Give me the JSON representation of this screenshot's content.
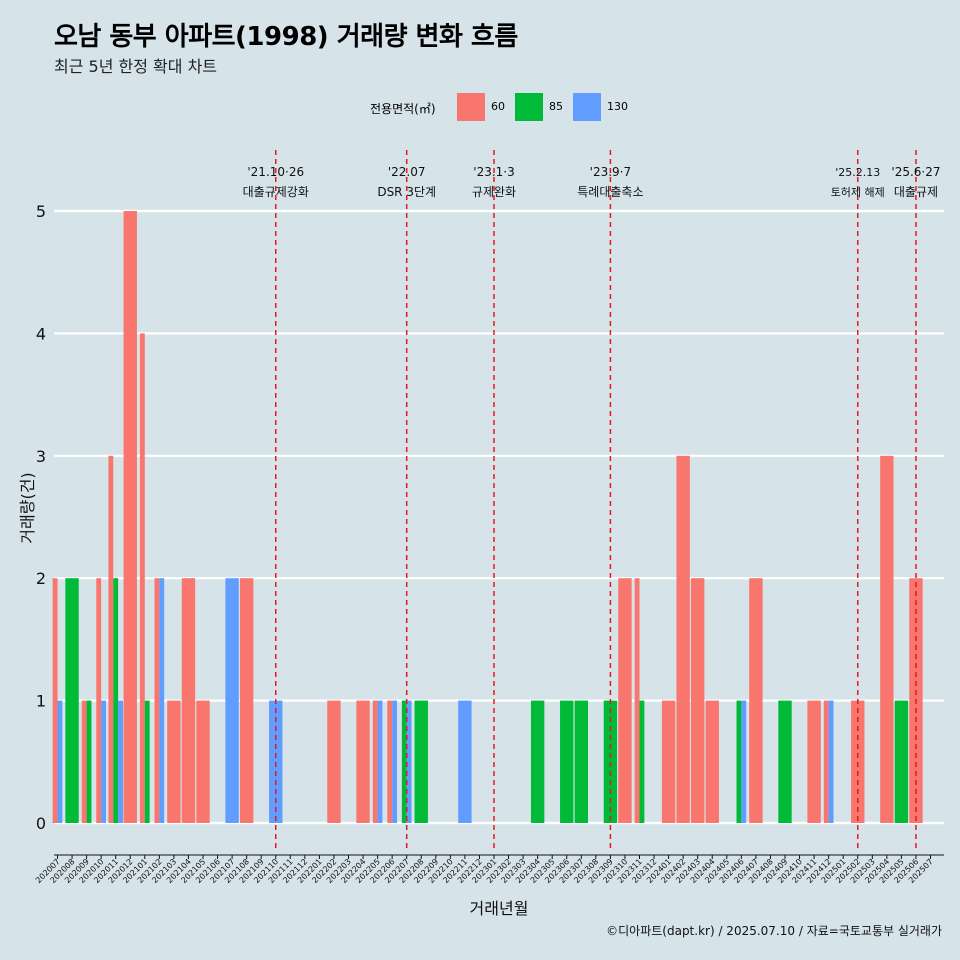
{
  "title": "오남 동부 아파트(1998) 거래량 변화 흐름",
  "subtitle": "최근 5년 한정 확대 차트",
  "caption": "©디아파트(dapt.kr) / 2025.07.10 / 자료=국토교통부 실거래가",
  "legend": {
    "title": "전용면적(㎡)",
    "items": [
      {
        "label": "60",
        "color": "#f8766d"
      },
      {
        "label": "85",
        "color": "#00ba38"
      },
      {
        "label": "130",
        "color": "#619cff"
      }
    ]
  },
  "chart_data": {
    "type": "bar",
    "xlabel": "거래년월",
    "ylabel": "거래량(건)",
    "ylim": [
      0,
      5
    ],
    "yticks": [
      0,
      1,
      2,
      3,
      4,
      5
    ],
    "categories": [
      "202007",
      "202008",
      "202009",
      "202010",
      "202011",
      "202012",
      "202101",
      "202102",
      "202103",
      "202104",
      "202105",
      "202106",
      "202107",
      "202108",
      "202109",
      "202110",
      "202111",
      "202112",
      "202201",
      "202202",
      "202203",
      "202204",
      "202205",
      "202206",
      "202207",
      "202208",
      "202209",
      "202210",
      "202211",
      "202212",
      "202301",
      "202302",
      "202303",
      "202304",
      "202305",
      "202306",
      "202307",
      "202308",
      "202309",
      "202310",
      "202311",
      "202312",
      "202401",
      "202402",
      "202403",
      "202404",
      "202405",
      "202406",
      "202407",
      "202408",
      "202409",
      "202410",
      "202411",
      "202412",
      "202501",
      "202502",
      "202503",
      "202504",
      "202505",
      "202506",
      "202507"
    ],
    "series": [
      {
        "name": "60",
        "values": [
          2,
          0,
          1,
          2,
          3,
          5,
          4,
          2,
          1,
          2,
          1,
          0,
          0,
          2,
          0,
          0,
          0,
          0,
          0,
          1,
          0,
          1,
          1,
          1,
          0,
          0,
          0,
          0,
          0,
          0,
          0,
          0,
          0,
          0,
          0,
          0,
          0,
          0,
          0,
          2,
          2,
          0,
          1,
          3,
          2,
          1,
          0,
          0,
          2,
          0,
          0,
          0,
          1,
          1,
          0,
          1,
          0,
          3,
          0,
          2,
          0
        ]
      },
      {
        "name": "85",
        "values": [
          0,
          2,
          1,
          0,
          2,
          0,
          1,
          0,
          0,
          0,
          0,
          0,
          0,
          0,
          0,
          0,
          0,
          0,
          0,
          0,
          0,
          0,
          0,
          0,
          1,
          1,
          0,
          0,
          0,
          0,
          0,
          0,
          0,
          1,
          0,
          1,
          1,
          0,
          1,
          0,
          1,
          0,
          0,
          0,
          0,
          0,
          0,
          1,
          0,
          0,
          1,
          0,
          0,
          0,
          0,
          0,
          0,
          0,
          1,
          0,
          0
        ]
      },
      {
        "name": "130",
        "values": [
          1,
          0,
          0,
          1,
          1,
          0,
          0,
          2,
          0,
          0,
          0,
          0,
          2,
          0,
          0,
          1,
          0,
          0,
          0,
          0,
          0,
          0,
          1,
          1,
          1,
          0,
          0,
          0,
          1,
          0,
          0,
          0,
          0,
          0,
          0,
          0,
          0,
          0,
          0,
          0,
          0,
          0,
          0,
          0,
          0,
          0,
          0,
          1,
          0,
          0,
          0,
          0,
          0,
          1,
          0,
          0,
          0,
          0,
          0,
          0,
          0
        ]
      }
    ],
    "events": [
      {
        "month": "202110",
        "date": "'21.10·26",
        "label": "대출규제강화"
      },
      {
        "month": "202207",
        "date": "'22.07",
        "label": "DSR 3단계"
      },
      {
        "month": "202301",
        "date": "'23.1·3",
        "label": "규제완화"
      },
      {
        "month": "202309",
        "date": "'23.9·7",
        "label": "특례대출축소"
      },
      {
        "month": "202502",
        "date": "'25.2.13",
        "label": "토허제 해제"
      },
      {
        "month": "202506",
        "date": "'25.6·27",
        "label": "대출규제"
      }
    ],
    "grid": true,
    "legend_position": "top"
  }
}
